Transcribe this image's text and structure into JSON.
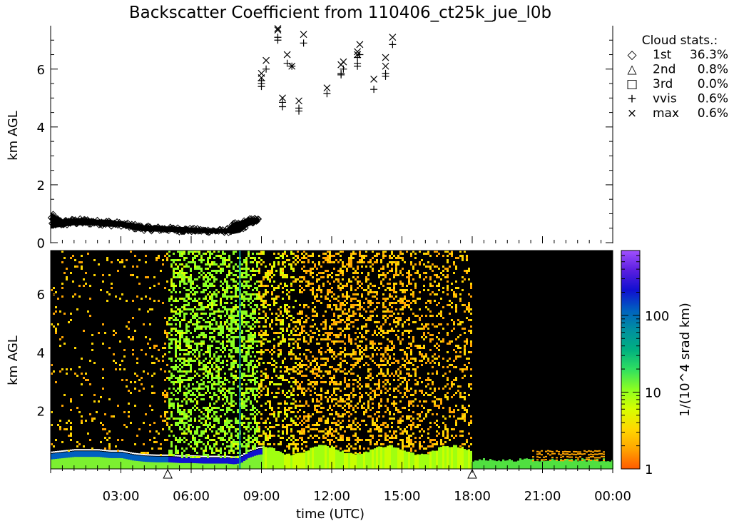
{
  "title": "Backscatter Coefficient from 110406_ct25k_jue_l0b",
  "chart_data": [
    {
      "type": "scatter",
      "ylabel": "km AGL",
      "ylim": [
        0,
        7.5
      ],
      "yticks": [
        "0",
        "2",
        "4",
        "6"
      ],
      "xlim_hours": [
        0,
        24
      ],
      "legend": {
        "position": "right",
        "title": "Cloud stats.:",
        "entries": [
          {
            "symbol": "diamond",
            "glyph": "◇",
            "label": "1st",
            "value": "36.3%"
          },
          {
            "symbol": "triangle",
            "glyph": "△",
            "label": "2nd",
            "value": "0.8%"
          },
          {
            "symbol": "square",
            "glyph": "□",
            "label": "3rd",
            "value": "0.0%"
          },
          {
            "symbol": "plus",
            "glyph": "+",
            "label": "vvis",
            "value": "0.6%"
          },
          {
            "symbol": "cross",
            "glyph": "×",
            "label": "max",
            "value": "0.6%"
          }
        ]
      },
      "first_base": {
        "hours": [
          0.0,
          0.5,
          1.0,
          1.5,
          2.0,
          2.5,
          3.0,
          3.5,
          4.0,
          4.5,
          5.0,
          5.5,
          6.0,
          6.5,
          7.0,
          7.5,
          7.8,
          8.1,
          8.4,
          8.7,
          8.9
        ],
        "km_low": [
          0.5,
          0.55,
          0.6,
          0.6,
          0.6,
          0.55,
          0.55,
          0.45,
          0.4,
          0.38,
          0.38,
          0.35,
          0.35,
          0.33,
          0.33,
          0.33,
          0.3,
          0.35,
          0.55,
          0.65,
          0.7
        ],
        "km_high": [
          1.05,
          0.8,
          0.85,
          0.85,
          0.8,
          0.8,
          0.72,
          0.68,
          0.6,
          0.58,
          0.56,
          0.55,
          0.52,
          0.5,
          0.48,
          0.48,
          0.7,
          0.75,
          0.85,
          0.88,
          0.85
        ]
      },
      "vvis_points": [
        [
          9.0,
          5.4
        ],
        [
          9.0,
          5.5
        ],
        [
          9.0,
          5.6
        ],
        [
          9.2,
          6.0
        ],
        [
          9.7,
          7.0
        ],
        [
          9.7,
          7.1
        ],
        [
          9.9,
          4.7
        ],
        [
          9.9,
          4.85
        ],
        [
          10.1,
          6.2
        ],
        [
          10.3,
          6.1
        ],
        [
          10.6,
          4.55
        ],
        [
          10.6,
          4.65
        ],
        [
          10.8,
          6.9
        ],
        [
          11.8,
          5.15
        ],
        [
          12.4,
          5.8
        ],
        [
          12.4,
          5.85
        ],
        [
          12.5,
          6.0
        ],
        [
          13.1,
          6.1
        ],
        [
          13.1,
          6.2
        ],
        [
          13.1,
          6.4
        ],
        [
          13.2,
          6.5
        ],
        [
          13.8,
          5.3
        ],
        [
          14.3,
          5.75
        ],
        [
          14.3,
          5.85
        ],
        [
          14.6,
          6.85
        ]
      ],
      "max_points": [
        [
          9.0,
          5.7
        ],
        [
          9.0,
          5.85
        ],
        [
          9.2,
          6.3
        ],
        [
          9.7,
          7.35
        ],
        [
          9.7,
          7.4
        ],
        [
          9.9,
          5.0
        ],
        [
          10.1,
          6.5
        ],
        [
          10.3,
          6.1
        ],
        [
          10.6,
          4.9
        ],
        [
          10.8,
          7.2
        ],
        [
          11.8,
          5.35
        ],
        [
          12.4,
          6.15
        ],
        [
          12.5,
          6.25
        ],
        [
          13.1,
          6.5
        ],
        [
          13.1,
          6.6
        ],
        [
          13.2,
          6.85
        ],
        [
          13.8,
          5.65
        ],
        [
          14.3,
          6.1
        ],
        [
          14.3,
          6.4
        ],
        [
          14.6,
          7.1
        ]
      ]
    },
    {
      "type": "heatmap",
      "xlabel": "time (UTC)",
      "ylabel": "km AGL",
      "ylim": [
        0,
        7.5
      ],
      "yticks": [
        "2",
        "4",
        "6"
      ],
      "xticks": [
        "03:00",
        "06:00",
        "09:00",
        "12:00",
        "15:00",
        "18:00",
        "21:00",
        "00:00"
      ],
      "xtick_hours": [
        3,
        6,
        9,
        12,
        15,
        18,
        21,
        24
      ],
      "triangle_markers_hours": [
        5.0,
        18.0
      ],
      "colorbar": {
        "label": "1/(10^4 srad km)",
        "scale": "log",
        "range": [
          1,
          700
        ],
        "ticks": [
          "1",
          "10",
          "100"
        ],
        "tick_values": [
          1,
          10,
          100
        ],
        "colors": [
          "#ff5a00",
          "#ffa500",
          "#ffd700",
          "#d8ff00",
          "#8cff20",
          "#30e060",
          "#00b080",
          "#0090a0",
          "#0060c0",
          "#1010d0",
          "#5a1ee0",
          "#a050ff"
        ]
      }
    }
  ]
}
